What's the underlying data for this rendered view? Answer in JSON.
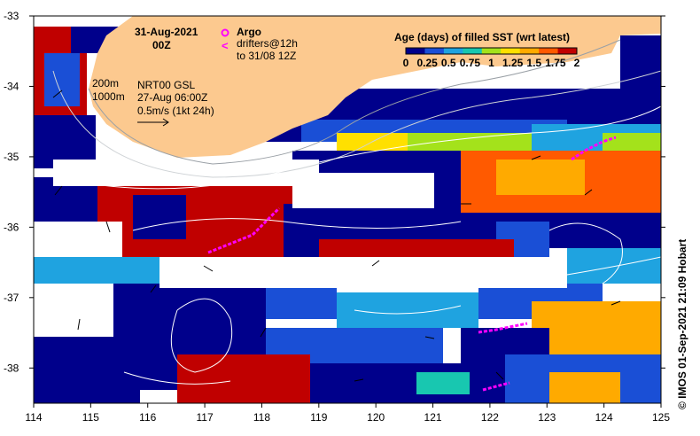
{
  "map": {
    "date_label": "31-Aug-2021",
    "time_label": "00Z",
    "legend_title": "Age (days) of filled SST (wrt latest)",
    "legend_ticks": [
      "0",
      "0.25",
      "0.5",
      "0.75",
      "1",
      "1.25",
      "1.5",
      "1.75",
      "2"
    ],
    "legend_colors": [
      "#00008b",
      "#1a4fd6",
      "#1fa3e0",
      "#18c7b0",
      "#a4e21b",
      "#ffe000",
      "#ffaa00",
      "#ff5a00",
      "#c00000"
    ],
    "argo_label": "Argo",
    "drifters_label": "drifters@12h",
    "drifters_sub": "to 31/08 12Z",
    "contour_200": "200m",
    "contour_1000": "1000m",
    "model_label": "NRT00 GSL",
    "model_date": "27-Aug 06:00Z",
    "scale_label": "0.5m/s (1kt 24h)",
    "credit": "© IMOS 01-Sep-2021 21:09 Hobart",
    "colors": {
      "land": "#fcc98f",
      "argo": "#ff00ff",
      "drifter": "#ff00ff",
      "no_data": "#ffffff"
    }
  },
  "chart_data": {
    "type": "heatmap",
    "xlabel": "",
    "ylabel": "",
    "xlim": [
      114,
      125
    ],
    "ylim": [
      -38.5,
      -33
    ],
    "x_ticks": [
      "114",
      "115",
      "116",
      "117",
      "118",
      "119",
      "120",
      "121",
      "122",
      "123",
      "124",
      "125"
    ],
    "y_ticks": [
      "-33",
      "-34",
      "-35",
      "-36",
      "-37",
      "-38"
    ],
    "colorbar_range": [
      0,
      2
    ]
  }
}
